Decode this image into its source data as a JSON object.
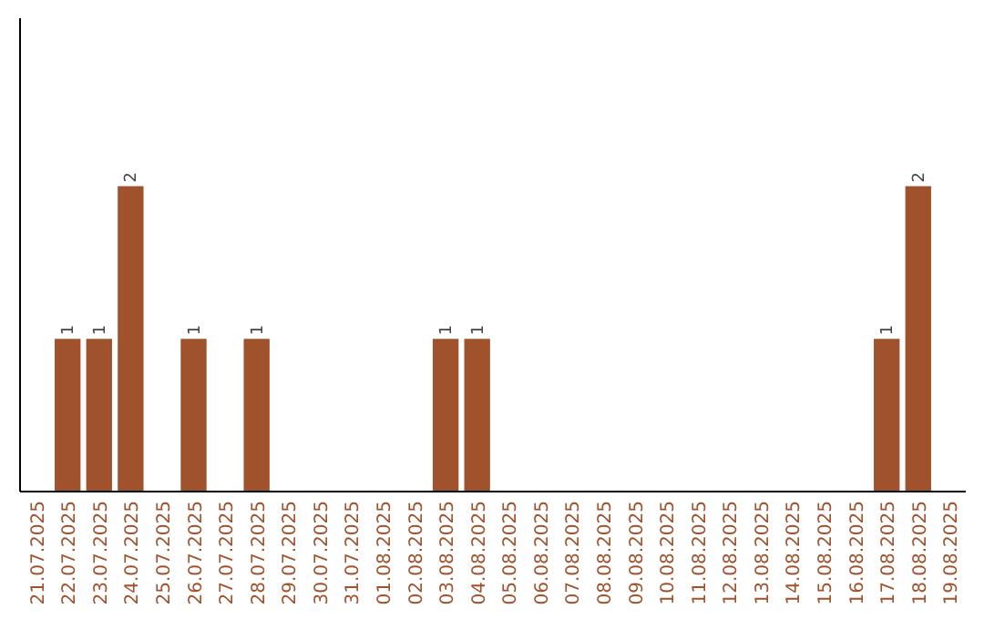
{
  "chart_data": {
    "type": "bar",
    "categories": [
      "21.07.2025",
      "22.07.2025",
      "23.07.2025",
      "24.07.2025",
      "25.07.2025",
      "26.07.2025",
      "27.07.2025",
      "28.07.2025",
      "29.07.2025",
      "30.07.2025",
      "31.07.2025",
      "01.08.2025",
      "02.08.2025",
      "03.08.2025",
      "04.08.2025",
      "05.08.2025",
      "06.08.2025",
      "07.08.2025",
      "08.08.2025",
      "09.08.2025",
      "10.08.2025",
      "11.08.2025",
      "12.08.2025",
      "13.08.2025",
      "14.08.2025",
      "15.08.2025",
      "16.08.2025",
      "17.08.2025",
      "18.08.2025",
      "19.08.2025"
    ],
    "values": [
      0,
      1,
      1,
      2,
      0,
      1,
      0,
      1,
      0,
      0,
      0,
      0,
      0,
      1,
      1,
      0,
      0,
      0,
      0,
      0,
      0,
      0,
      0,
      0,
      0,
      0,
      0,
      1,
      2,
      0
    ],
    "value_labels": [
      null,
      "1",
      "1",
      "2",
      null,
      "1",
      null,
      "1",
      null,
      null,
      null,
      null,
      null,
      "1",
      "1",
      null,
      null,
      null,
      null,
      null,
      null,
      null,
      null,
      null,
      null,
      null,
      null,
      "1",
      "2",
      null
    ],
    "color": "#a0522d",
    "ylim": [
      0,
      3.1
    ],
    "tick_labels": "x"
  }
}
